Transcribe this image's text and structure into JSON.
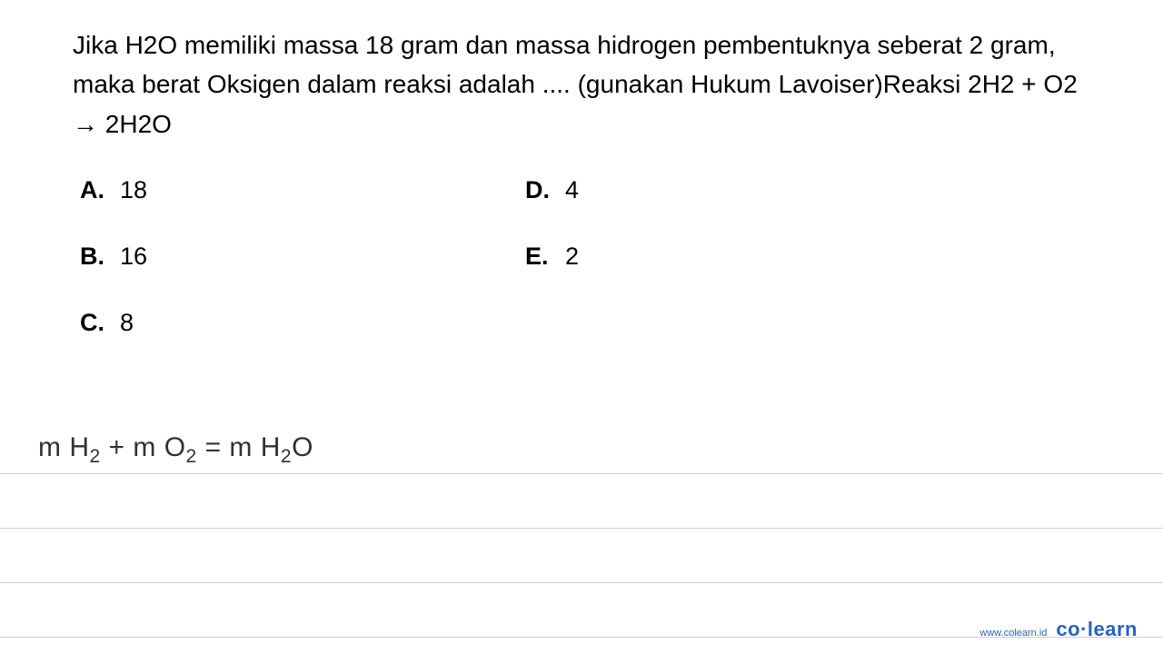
{
  "question": {
    "text": "Jika H2O memiliki massa 18 gram dan massa hidrogen pembentuknya seberat 2 gram, maka berat Oksigen dalam reaksi adalah .... (gunakan Hukum Lavoiser)Reaksi 2H2 + O2 → 2H2O"
  },
  "options": {
    "a": {
      "letter": "A.",
      "value": "18"
    },
    "b": {
      "letter": "B.",
      "value": "16"
    },
    "c": {
      "letter": "C.",
      "value": "8"
    },
    "d": {
      "letter": "D.",
      "value": "4"
    },
    "e": {
      "letter": "E.",
      "value": "2"
    }
  },
  "equation": {
    "html": "m H<sub>2</sub> + m O<sub>2</sub> = m H<sub>2</sub>O"
  },
  "footer": {
    "url": "www.colearn.id",
    "logo": "co·learn"
  },
  "styling": {
    "background": "#ffffff",
    "text_color": "#000000",
    "equation_color": "#323232",
    "line_color": "#d0d0d0",
    "brand_color": "#2962b8",
    "question_fontsize": 28,
    "option_fontsize": 27,
    "equation_fontsize": 30,
    "line_spacing": 60
  }
}
